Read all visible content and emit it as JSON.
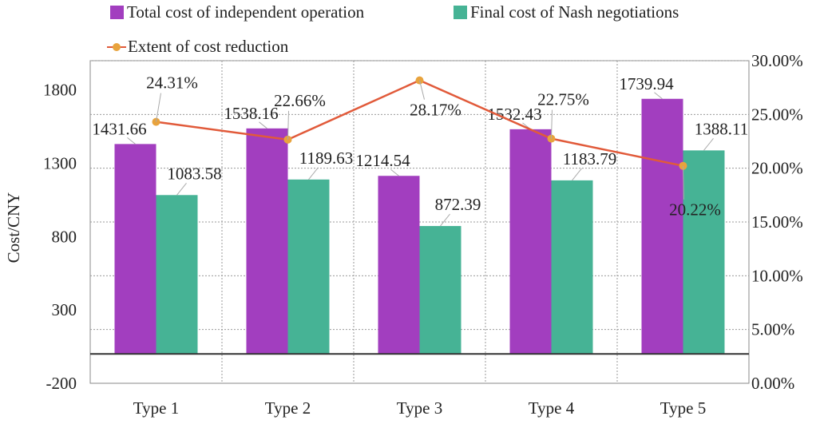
{
  "legend": {
    "items": [
      {
        "label": "Total cost of independent operation",
        "color": "#a23ebf",
        "kind": "bar"
      },
      {
        "label": "Final cost of Nash negotiations",
        "color": "#46b395",
        "kind": "bar"
      },
      {
        "label": "Extent of cost reduction",
        "color": "#e15a3a",
        "marker": "#e8a33d",
        "kind": "line"
      }
    ]
  },
  "chart_data": {
    "type": "bar",
    "categories": [
      "Type 1",
      "Type 2",
      "Type 3",
      "Type 4",
      "Type 5"
    ],
    "ylabel": "Cost/CNY",
    "ylim": [
      -200,
      2000
    ],
    "yticks": [
      "-200",
      "300",
      "800",
      "1300",
      "1800"
    ],
    "y2lim": [
      0,
      30
    ],
    "y2ticks": [
      "0.00%",
      "5.00%",
      "10.00%",
      "15.00%",
      "20.00%",
      "25.00%",
      "30.00%"
    ],
    "grid": true,
    "series": [
      {
        "name": "Total cost of independent operation",
        "kind": "bar",
        "color": "#a23ebf",
        "values": [
          1431.66,
          1538.16,
          1214.54,
          1532.43,
          1739.94
        ],
        "labels": [
          "1431.66",
          "1538.16",
          "1214.54",
          "1532.43",
          "1739.94"
        ]
      },
      {
        "name": "Final cost of Nash negotiations",
        "kind": "bar",
        "color": "#46b395",
        "values": [
          1083.58,
          1189.63,
          872.39,
          1183.79,
          1388.11
        ],
        "labels": [
          "1083.58",
          "1189.63",
          "872.39",
          "1183.79",
          "1388.11"
        ]
      },
      {
        "name": "Extent of cost reduction",
        "kind": "line",
        "axis": "right",
        "color": "#e15a3a",
        "marker_color": "#e8a33d",
        "values": [
          24.31,
          22.66,
          28.17,
          22.75,
          20.22
        ],
        "labels": [
          "24.31%",
          "22.66%",
          "28.17%",
          "22.75%",
          "20.22%"
        ]
      }
    ]
  }
}
